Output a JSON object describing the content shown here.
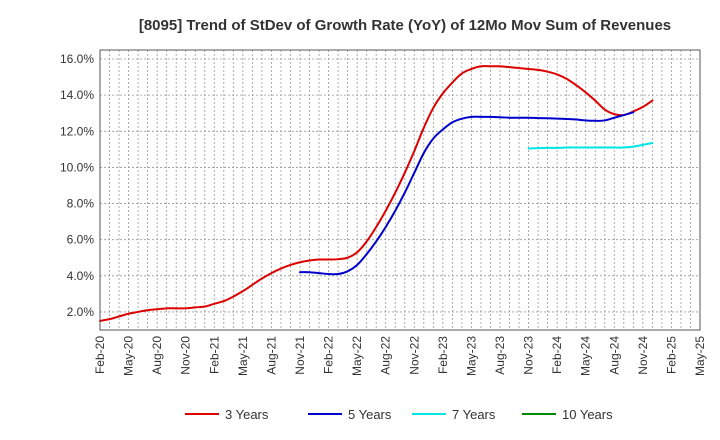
{
  "chart_data": {
    "type": "line",
    "title": "[8095]  Trend of StDev of Growth Rate (YoY) of 12Mo Mov Sum of Revenues",
    "xlabel": "",
    "ylabel": "",
    "ylim": [
      1.0,
      16.5
    ],
    "y_ticks": [
      2.0,
      4.0,
      6.0,
      8.0,
      10.0,
      12.0,
      14.0,
      16.0
    ],
    "y_tick_labels": [
      "2.0%",
      "4.0%",
      "6.0%",
      "8.0%",
      "10.0%",
      "12.0%",
      "14.0%",
      "16.0%"
    ],
    "x_tick_labels": [
      "Feb-20",
      "May-20",
      "Aug-20",
      "Nov-20",
      "Feb-21",
      "May-21",
      "Aug-21",
      "Nov-21",
      "Feb-22",
      "May-22",
      "Aug-22",
      "Nov-22",
      "Feb-23",
      "May-23",
      "Aug-23",
      "Nov-23",
      "Feb-24",
      "May-24",
      "Aug-24",
      "Nov-24",
      "Feb-25",
      "May-25"
    ],
    "x_index_range": [
      0,
      63
    ],
    "grid": true,
    "legend_position": "bottom",
    "series": [
      {
        "name": "3 Years",
        "color": "#dd0000",
        "start_index": 0,
        "values": [
          1.5,
          1.6,
          1.75,
          1.9,
          2.0,
          2.1,
          2.15,
          2.2,
          2.2,
          2.2,
          2.25,
          2.3,
          2.45,
          2.6,
          2.85,
          3.15,
          3.5,
          3.85,
          4.15,
          4.4,
          4.6,
          4.75,
          4.85,
          4.9,
          4.9,
          4.92,
          5.0,
          5.3,
          5.9,
          6.7,
          7.6,
          8.6,
          9.7,
          10.9,
          12.2,
          13.3,
          14.1,
          14.7,
          15.2,
          15.45,
          15.6,
          15.6,
          15.6,
          15.55,
          15.5,
          15.45,
          15.4,
          15.3,
          15.15,
          14.9,
          14.55,
          14.15,
          13.7,
          13.2,
          12.95,
          12.9,
          13.1,
          13.35,
          13.7
        ]
      },
      {
        "name": "5 Years",
        "color": "#0000cc",
        "start_index": 21,
        "values": [
          4.2,
          4.2,
          4.15,
          4.1,
          4.1,
          4.25,
          4.6,
          5.2,
          5.9,
          6.7,
          7.6,
          8.6,
          9.7,
          10.8,
          11.6,
          12.1,
          12.5,
          12.7,
          12.8,
          12.8,
          12.8,
          12.78,
          12.75,
          12.75,
          12.75,
          12.73,
          12.72,
          12.7,
          12.68,
          12.65,
          12.6,
          12.58,
          12.6,
          12.75,
          12.9,
          13.05
        ]
      },
      {
        "name": "7 Years",
        "color": "#00e5e5",
        "start_index": 45,
        "values": [
          11.05,
          11.07,
          11.08,
          11.08,
          11.1,
          11.1,
          11.1,
          11.1,
          11.1,
          11.1,
          11.1,
          11.15,
          11.25,
          11.35
        ]
      },
      {
        "name": "10 Years",
        "color": "#008800",
        "start_index": 0,
        "values": []
      }
    ]
  }
}
